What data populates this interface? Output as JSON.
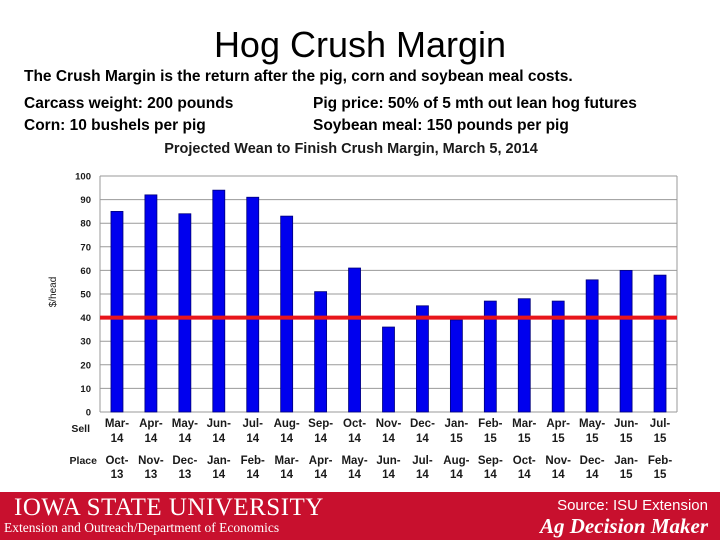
{
  "slide": {
    "title": "Hog Crush Margin",
    "line1": "The Crush Margin is the return after the pig, corn and soybean meal costs.",
    "line2a": "Carcass weight:  200 pounds",
    "line2b": "Pig price:  50% of 5 mth out lean hog futures",
    "line3a": "Corn:  10 bushels per pig",
    "line3b": "Soybean meal:  150 pounds per pig"
  },
  "footer": {
    "university": "IOWA STATE UNIVERSITY",
    "subtitle": "Extension and Outreach/Department of Economics",
    "source": "Source: ISU Extension",
    "brand": "Ag Decision Maker"
  },
  "colors": {
    "bar": "#0000ee",
    "reference_line": "#e8151b",
    "footer": "#c8102e"
  },
  "chart_data": {
    "type": "bar",
    "title": "Projected Wean to Finish Crush Margin, March 5, 2014",
    "ylabel": "$/head",
    "ylim": [
      0,
      100
    ],
    "yticks": [
      0,
      10,
      20,
      30,
      40,
      50,
      60,
      70,
      80,
      90,
      100
    ],
    "grid": true,
    "row_labels": {
      "sell": "Sell",
      "place": "Place"
    },
    "sell": [
      {
        "m": "Mar-",
        "y": "14"
      },
      {
        "m": "Apr-",
        "y": "14"
      },
      {
        "m": "May-",
        "y": "14"
      },
      {
        "m": "Jun-",
        "y": "14"
      },
      {
        "m": "Jul-",
        "y": "14"
      },
      {
        "m": "Aug-",
        "y": "14"
      },
      {
        "m": "Sep-",
        "y": "14"
      },
      {
        "m": "Oct-",
        "y": "14"
      },
      {
        "m": "Nov-",
        "y": "14"
      },
      {
        "m": "Dec-",
        "y": "14"
      },
      {
        "m": "Jan-",
        "y": "15"
      },
      {
        "m": "Feb-",
        "y": "15"
      },
      {
        "m": "Mar-",
        "y": "15"
      },
      {
        "m": "Apr-",
        "y": "15"
      },
      {
        "m": "May-",
        "y": "15"
      },
      {
        "m": "Jun-",
        "y": "15"
      },
      {
        "m": "Jul-",
        "y": "15"
      }
    ],
    "place": [
      {
        "m": "Oct-",
        "y": "13"
      },
      {
        "m": "Nov-",
        "y": "13"
      },
      {
        "m": "Dec-",
        "y": "13"
      },
      {
        "m": "Jan-",
        "y": "14"
      },
      {
        "m": "Feb-",
        "y": "14"
      },
      {
        "m": "Mar-",
        "y": "14"
      },
      {
        "m": "Apr-",
        "y": "14"
      },
      {
        "m": "May-",
        "y": "14"
      },
      {
        "m": "Jun-",
        "y": "14"
      },
      {
        "m": "Jul-",
        "y": "14"
      },
      {
        "m": "Aug-",
        "y": "14"
      },
      {
        "m": "Sep-",
        "y": "14"
      },
      {
        "m": "Oct-",
        "y": "14"
      },
      {
        "m": "Nov-",
        "y": "14"
      },
      {
        "m": "Dec-",
        "y": "14"
      },
      {
        "m": "Jan-",
        "y": "15"
      },
      {
        "m": "Feb-",
        "y": "15"
      }
    ],
    "values": [
      85,
      92,
      84,
      94,
      91,
      83,
      51,
      61,
      36,
      45,
      39,
      47,
      48,
      47,
      56,
      60,
      58
    ],
    "reference_line": 40
  }
}
